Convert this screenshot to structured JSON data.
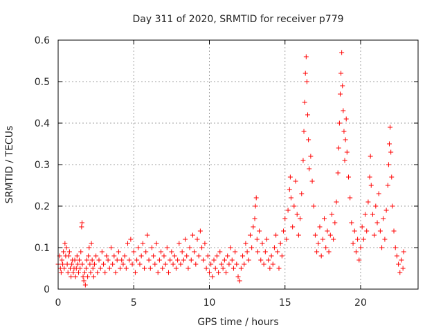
{
  "chart_data": {
    "type": "scatter",
    "title": "Day 311 of 2020, SRMTID for receiver p779",
    "xlabel": "GPS time / hours",
    "ylabel": "SRMTID / TECUs",
    "xlim": [
      0,
      23.8
    ],
    "ylim": [
      0,
      0.6
    ],
    "xticks": [
      "0",
      "5",
      "10",
      "15",
      "20"
    ],
    "yticks": [
      "0",
      "0.1",
      "0.2",
      "0.3",
      "0.4",
      "0.5",
      "0.6"
    ],
    "grid": true,
    "marker": "+",
    "color": "#ff0000",
    "series": [
      {
        "name": "SRMTID",
        "points": [
          [
            0.0,
            0.06
          ],
          [
            0.1,
            0.08
          ],
          [
            0.15,
            0.05
          ],
          [
            0.2,
            0.04
          ],
          [
            0.25,
            0.07
          ],
          [
            0.3,
            0.06
          ],
          [
            0.35,
            0.09
          ],
          [
            0.4,
            0.05
          ],
          [
            0.45,
            0.11
          ],
          [
            0.5,
            0.08
          ],
          [
            0.55,
            0.1
          ],
          [
            0.6,
            0.06
          ],
          [
            0.65,
            0.04
          ],
          [
            0.7,
            0.08
          ],
          [
            0.75,
            0.09
          ],
          [
            0.8,
            0.05
          ],
          [
            0.85,
            0.03
          ],
          [
            0.9,
            0.06
          ],
          [
            0.95,
            0.07
          ],
          [
            1.0,
            0.04
          ],
          [
            1.05,
            0.05
          ],
          [
            1.1,
            0.07
          ],
          [
            1.15,
            0.03
          ],
          [
            1.2,
            0.05
          ],
          [
            1.25,
            0.08
          ],
          [
            1.3,
            0.06
          ],
          [
            1.35,
            0.04
          ],
          [
            1.4,
            0.07
          ],
          [
            1.45,
            0.05
          ],
          [
            1.5,
            0.09
          ],
          [
            1.55,
            0.15
          ],
          [
            1.58,
            0.16
          ],
          [
            1.6,
            0.06
          ],
          [
            1.65,
            0.03
          ],
          [
            1.7,
            0.02
          ],
          [
            1.75,
            0.04
          ],
          [
            1.8,
            0.01
          ],
          [
            1.85,
            0.05
          ],
          [
            1.9,
            0.07
          ],
          [
            1.95,
            0.03
          ],
          [
            2.0,
            0.08
          ],
          [
            2.05,
            0.1
          ],
          [
            2.1,
            0.06
          ],
          [
            2.15,
            0.04
          ],
          [
            2.2,
            0.11
          ],
          [
            2.25,
            0.07
          ],
          [
            2.3,
            0.05
          ],
          [
            2.35,
            0.03
          ],
          [
            2.4,
            0.06
          ],
          [
            2.5,
            0.08
          ],
          [
            2.6,
            0.04
          ],
          [
            2.7,
            0.07
          ],
          [
            2.8,
            0.05
          ],
          [
            2.9,
            0.09
          ],
          [
            3.0,
            0.06
          ],
          [
            3.1,
            0.04
          ],
          [
            3.2,
            0.08
          ],
          [
            3.3,
            0.07
          ],
          [
            3.4,
            0.05
          ],
          [
            3.5,
            0.1
          ],
          [
            3.6,
            0.06
          ],
          [
            3.7,
            0.08
          ],
          [
            3.8,
            0.04
          ],
          [
            3.9,
            0.07
          ],
          [
            4.0,
            0.09
          ],
          [
            4.1,
            0.05
          ],
          [
            4.2,
            0.07
          ],
          [
            4.3,
            0.06
          ],
          [
            4.4,
            0.08
          ],
          [
            4.5,
            0.05
          ],
          [
            4.6,
            0.11
          ],
          [
            4.7,
            0.07
          ],
          [
            4.8,
            0.12
          ],
          [
            4.9,
            0.06
          ],
          [
            5.0,
            0.09
          ],
          [
            5.1,
            0.04
          ],
          [
            5.2,
            0.07
          ],
          [
            5.3,
            0.1
          ],
          [
            5.4,
            0.06
          ],
          [
            5.5,
            0.08
          ],
          [
            5.6,
            0.11
          ],
          [
            5.7,
            0.05
          ],
          [
            5.8,
            0.09
          ],
          [
            5.9,
            0.13
          ],
          [
            6.0,
            0.07
          ],
          [
            6.1,
            0.05
          ],
          [
            6.2,
            0.1
          ],
          [
            6.3,
            0.08
          ],
          [
            6.4,
            0.06
          ],
          [
            6.5,
            0.11
          ],
          [
            6.6,
            0.04
          ],
          [
            6.7,
            0.07
          ],
          [
            6.8,
            0.09
          ],
          [
            6.9,
            0.05
          ],
          [
            7.0,
            0.08
          ],
          [
            7.1,
            0.06
          ],
          [
            7.2,
            0.1
          ],
          [
            7.3,
            0.04
          ],
          [
            7.4,
            0.07
          ],
          [
            7.5,
            0.09
          ],
          [
            7.6,
            0.06
          ],
          [
            7.7,
            0.08
          ],
          [
            7.8,
            0.05
          ],
          [
            7.9,
            0.07
          ],
          [
            8.0,
            0.11
          ],
          [
            8.1,
            0.06
          ],
          [
            8.2,
            0.09
          ],
          [
            8.3,
            0.07
          ],
          [
            8.4,
            0.12
          ],
          [
            8.5,
            0.08
          ],
          [
            8.6,
            0.05
          ],
          [
            8.7,
            0.1
          ],
          [
            8.8,
            0.07
          ],
          [
            8.9,
            0.13
          ],
          [
            9.0,
            0.09
          ],
          [
            9.1,
            0.06
          ],
          [
            9.2,
            0.12
          ],
          [
            9.3,
            0.08
          ],
          [
            9.4,
            0.14
          ],
          [
            9.5,
            0.1
          ],
          [
            9.6,
            0.07
          ],
          [
            9.7,
            0.11
          ],
          [
            9.8,
            0.05
          ],
          [
            9.9,
            0.08
          ],
          [
            10.0,
            0.04
          ],
          [
            10.1,
            0.06
          ],
          [
            10.2,
            0.03
          ],
          [
            10.3,
            0.07
          ],
          [
            10.4,
            0.05
          ],
          [
            10.5,
            0.08
          ],
          [
            10.6,
            0.04
          ],
          [
            10.7,
            0.09
          ],
          [
            10.8,
            0.06
          ],
          [
            10.9,
            0.05
          ],
          [
            11.0,
            0.07
          ],
          [
            11.1,
            0.04
          ],
          [
            11.2,
            0.08
          ],
          [
            11.3,
            0.06
          ],
          [
            11.4,
            0.1
          ],
          [
            11.5,
            0.07
          ],
          [
            11.6,
            0.05
          ],
          [
            11.7,
            0.09
          ],
          [
            11.8,
            0.06
          ],
          [
            11.9,
            0.03
          ],
          [
            12.0,
            0.02
          ],
          [
            12.1,
            0.05
          ],
          [
            12.2,
            0.08
          ],
          [
            12.3,
            0.06
          ],
          [
            12.4,
            0.11
          ],
          [
            12.5,
            0.09
          ],
          [
            12.6,
            0.07
          ],
          [
            12.7,
            0.13
          ],
          [
            12.8,
            0.1
          ],
          [
            12.9,
            0.15
          ],
          [
            13.0,
            0.17
          ],
          [
            13.05,
            0.2
          ],
          [
            13.1,
            0.22
          ],
          [
            13.15,
            0.12
          ],
          [
            13.2,
            0.09
          ],
          [
            13.3,
            0.14
          ],
          [
            13.4,
            0.07
          ],
          [
            13.5,
            0.11
          ],
          [
            13.6,
            0.06
          ],
          [
            13.7,
            0.09
          ],
          [
            13.8,
            0.12
          ],
          [
            13.9,
            0.07
          ],
          [
            14.0,
            0.05
          ],
          [
            14.1,
            0.08
          ],
          [
            14.2,
            0.06
          ],
          [
            14.3,
            0.1
          ],
          [
            14.4,
            0.13
          ],
          [
            14.5,
            0.09
          ],
          [
            14.6,
            0.05
          ],
          [
            14.7,
            0.11
          ],
          [
            14.8,
            0.08
          ],
          [
            14.9,
            0.14
          ],
          [
            15.0,
            0.17
          ],
          [
            15.1,
            0.12
          ],
          [
            15.2,
            0.19
          ],
          [
            15.3,
            0.24
          ],
          [
            15.35,
            0.27
          ],
          [
            15.4,
            0.22
          ],
          [
            15.5,
            0.15
          ],
          [
            15.6,
            0.2
          ],
          [
            15.7,
            0.26
          ],
          [
            15.8,
            0.18
          ],
          [
            15.9,
            0.13
          ],
          [
            16.0,
            0.17
          ],
          [
            16.1,
            0.23
          ],
          [
            16.2,
            0.31
          ],
          [
            16.25,
            0.38
          ],
          [
            16.3,
            0.45
          ],
          [
            16.35,
            0.52
          ],
          [
            16.4,
            0.56
          ],
          [
            16.45,
            0.5
          ],
          [
            16.5,
            0.42
          ],
          [
            16.55,
            0.36
          ],
          [
            16.6,
            0.29
          ],
          [
            16.7,
            0.32
          ],
          [
            16.8,
            0.26
          ],
          [
            16.9,
            0.2
          ],
          [
            17.0,
            0.13
          ],
          [
            17.1,
            0.09
          ],
          [
            17.2,
            0.11
          ],
          [
            17.3,
            0.15
          ],
          [
            17.4,
            0.08
          ],
          [
            17.5,
            0.12
          ],
          [
            17.6,
            0.17
          ],
          [
            17.7,
            0.1
          ],
          [
            17.8,
            0.14
          ],
          [
            17.9,
            0.09
          ],
          [
            18.0,
            0.13
          ],
          [
            18.1,
            0.18
          ],
          [
            18.2,
            0.12
          ],
          [
            18.3,
            0.16
          ],
          [
            18.4,
            0.21
          ],
          [
            18.5,
            0.28
          ],
          [
            18.55,
            0.34
          ],
          [
            18.6,
            0.4
          ],
          [
            18.65,
            0.47
          ],
          [
            18.7,
            0.52
          ],
          [
            18.75,
            0.57
          ],
          [
            18.8,
            0.49
          ],
          [
            18.85,
            0.43
          ],
          [
            18.9,
            0.38
          ],
          [
            18.95,
            0.31
          ],
          [
            19.0,
            0.36
          ],
          [
            19.05,
            0.41
          ],
          [
            19.1,
            0.33
          ],
          [
            19.2,
            0.27
          ],
          [
            19.3,
            0.22
          ],
          [
            19.4,
            0.16
          ],
          [
            19.5,
            0.11
          ],
          [
            19.6,
            0.14
          ],
          [
            19.7,
            0.09
          ],
          [
            19.8,
            0.12
          ],
          [
            19.9,
            0.07
          ],
          [
            20.0,
            0.1
          ],
          [
            20.1,
            0.15
          ],
          [
            20.2,
            0.12
          ],
          [
            20.3,
            0.18
          ],
          [
            20.4,
            0.14
          ],
          [
            20.5,
            0.21
          ],
          [
            20.6,
            0.27
          ],
          [
            20.65,
            0.32
          ],
          [
            20.7,
            0.25
          ],
          [
            20.8,
            0.18
          ],
          [
            20.9,
            0.13
          ],
          [
            21.0,
            0.2
          ],
          [
            21.1,
            0.16
          ],
          [
            21.2,
            0.23
          ],
          [
            21.3,
            0.14
          ],
          [
            21.4,
            0.1
          ],
          [
            21.5,
            0.17
          ],
          [
            21.6,
            0.12
          ],
          [
            21.7,
            0.19
          ],
          [
            21.8,
            0.25
          ],
          [
            21.85,
            0.3
          ],
          [
            21.9,
            0.35
          ],
          [
            21.95,
            0.39
          ],
          [
            22.0,
            0.33
          ],
          [
            22.05,
            0.27
          ],
          [
            22.1,
            0.2
          ],
          [
            22.2,
            0.14
          ],
          [
            22.3,
            0.1
          ],
          [
            22.4,
            0.08
          ],
          [
            22.5,
            0.06
          ],
          [
            22.6,
            0.04
          ],
          [
            22.7,
            0.07
          ],
          [
            22.8,
            0.05
          ],
          [
            22.85,
            0.09
          ]
        ]
      }
    ]
  }
}
